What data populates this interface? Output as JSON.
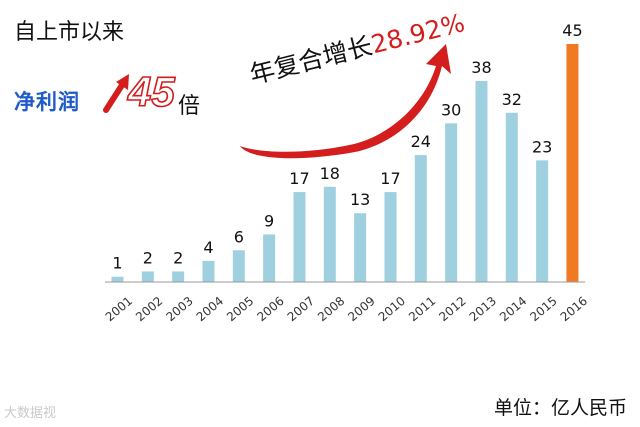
{
  "title": "自上市以来",
  "profit": {
    "label": "净利润",
    "multiple": "45",
    "suffix": "倍"
  },
  "growth": {
    "label": "年复合增长",
    "rate": "28.92%"
  },
  "unit": "单位：亿人民币",
  "watermark": "大数据视",
  "colors": {
    "bar": "#9fd0e0",
    "highlight": "#f07a22",
    "accent": "#d41d1d",
    "blue_text": "#1f5bc7"
  },
  "chart_data": {
    "type": "bar",
    "categories": [
      "2001",
      "2002",
      "2003",
      "2004",
      "2005",
      "2006",
      "2007",
      "2008",
      "2009",
      "2010",
      "2011",
      "2012",
      "2013",
      "2014",
      "2015",
      "2016"
    ],
    "values": [
      1,
      2,
      2,
      4,
      6,
      9,
      17,
      18,
      13,
      17,
      24,
      30,
      38,
      32,
      23,
      45
    ],
    "highlight_category": "2016",
    "data_labels": true,
    "grid": false
  }
}
